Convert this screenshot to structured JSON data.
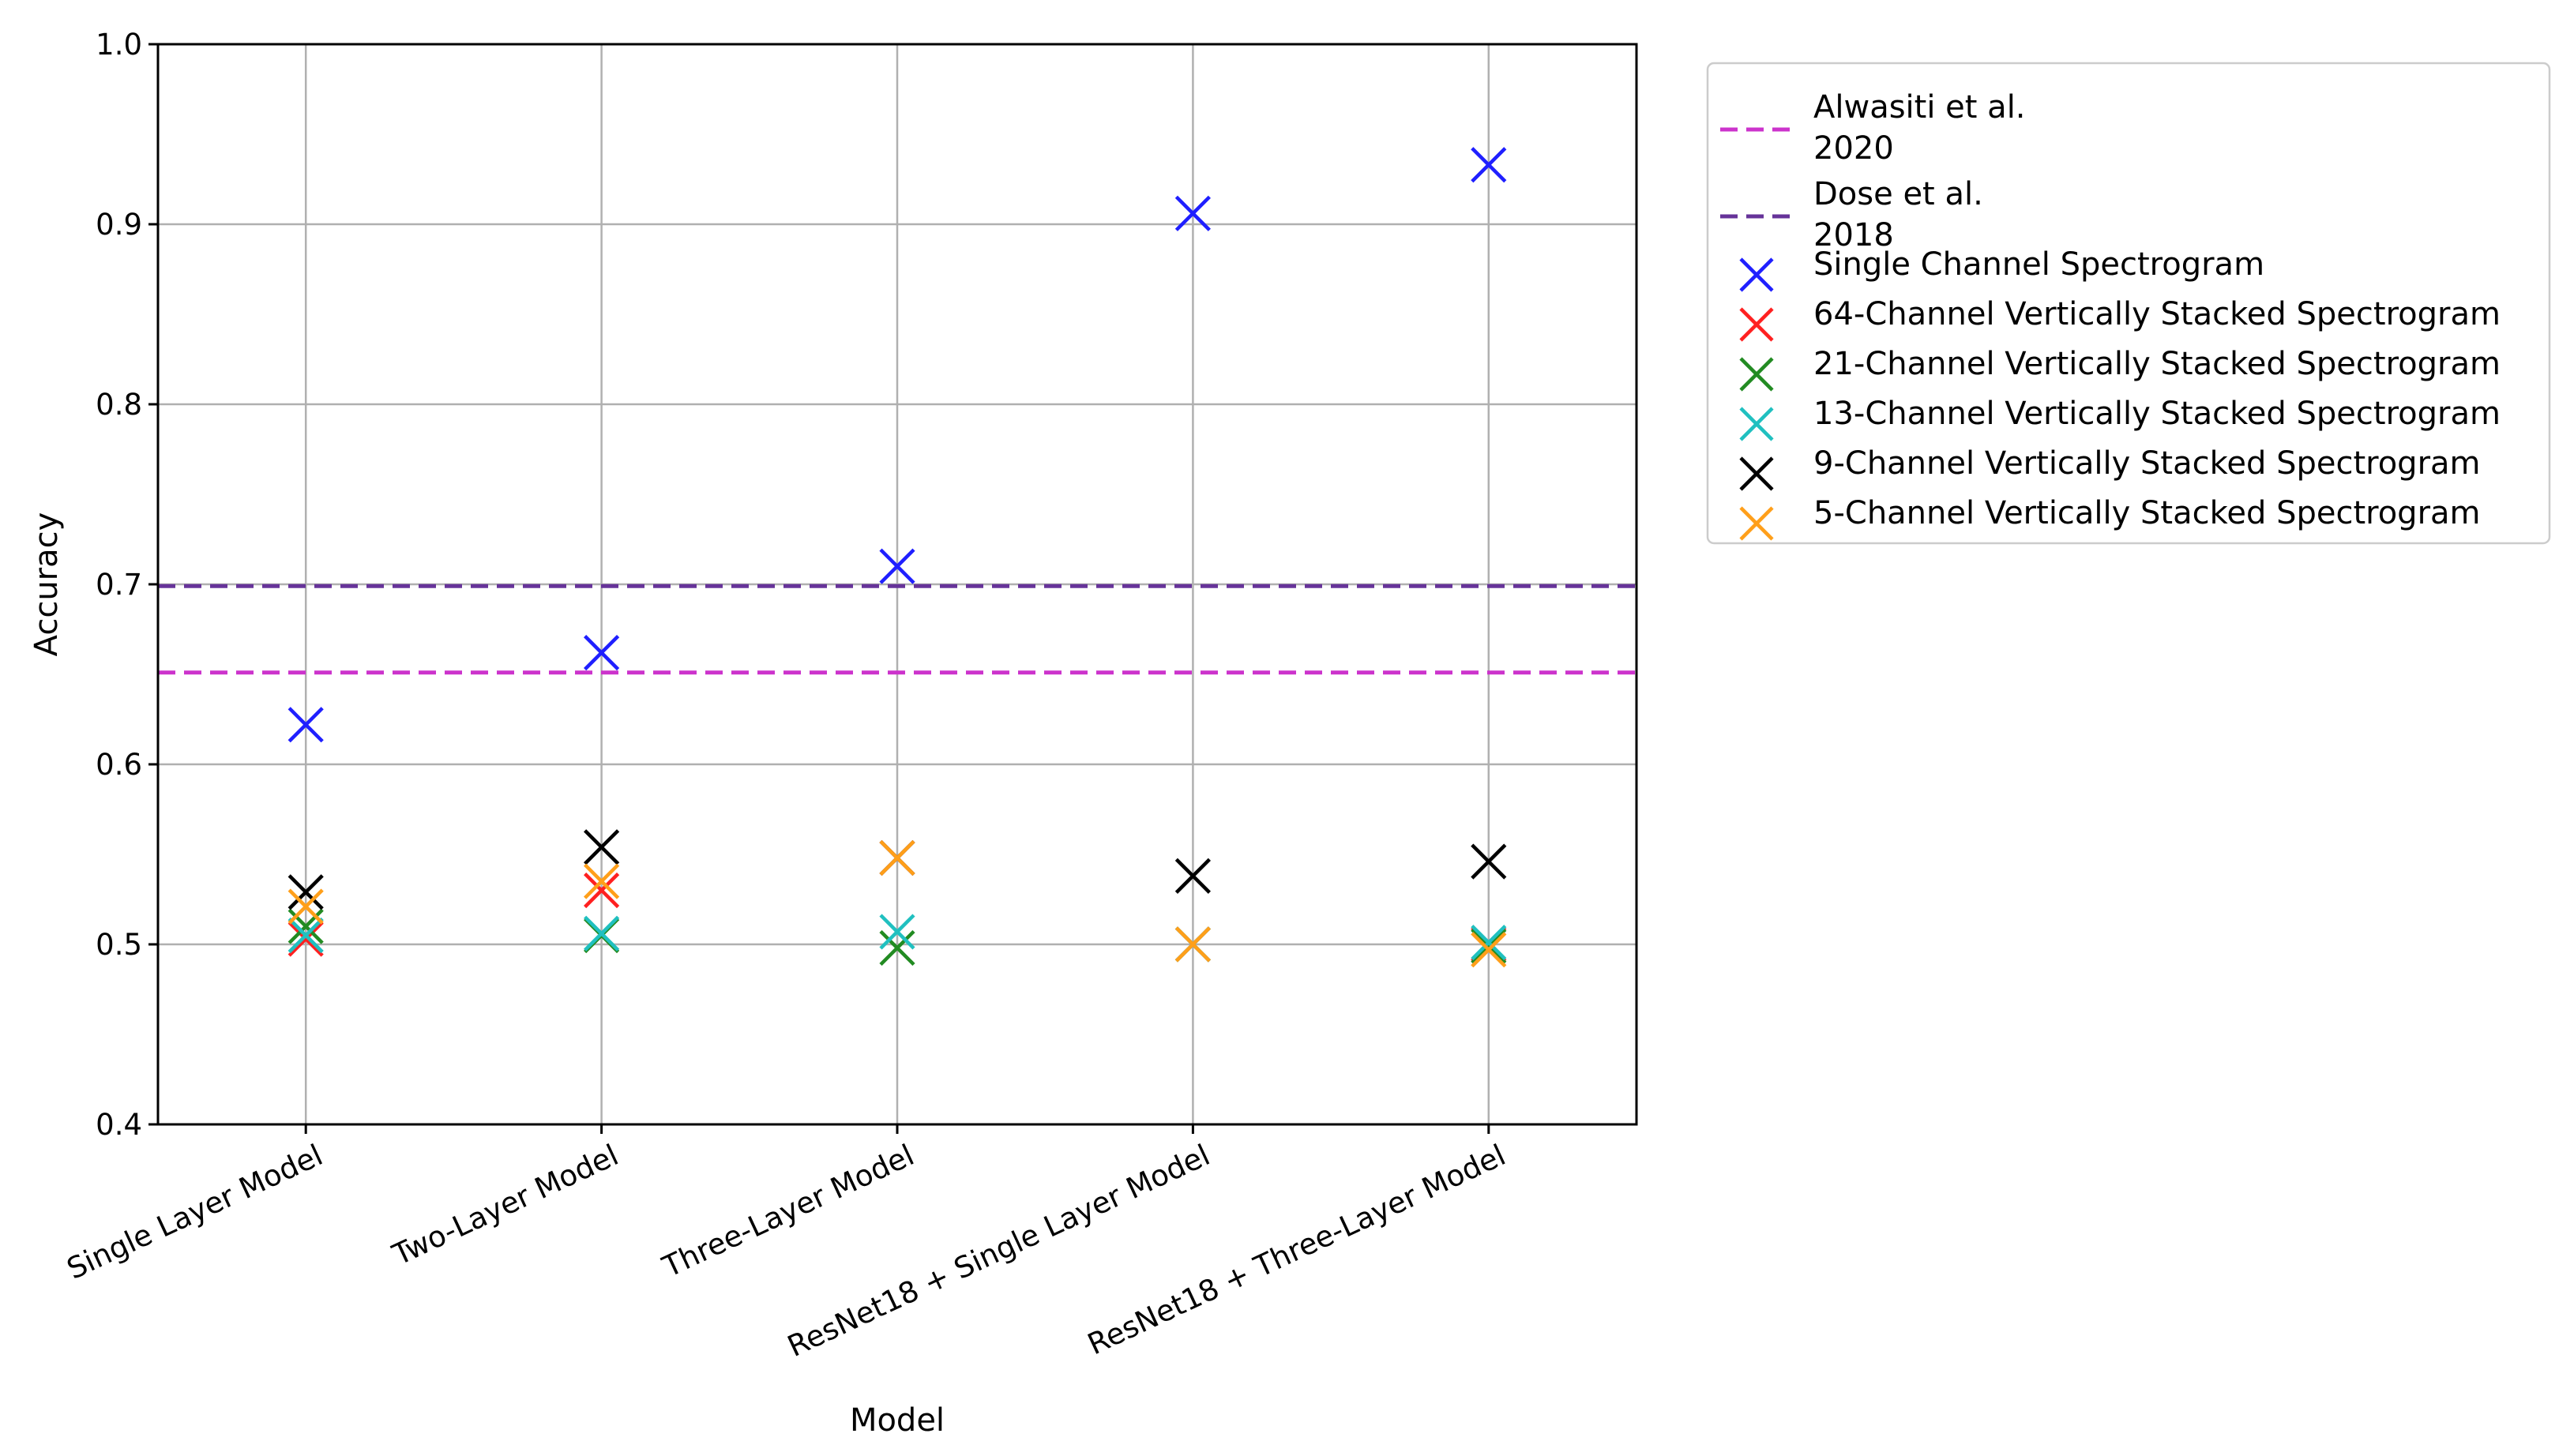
{
  "chart_data": {
    "type": "scatter",
    "xlabel": "Model",
    "ylabel": "Accuracy",
    "ylim": [
      0.4,
      1.0
    ],
    "yticks": [
      "0.4",
      "0.5",
      "0.6",
      "0.7",
      "0.8",
      "0.9",
      "1.0"
    ],
    "grid": true,
    "legend_position": "outside-right",
    "categories": [
      "Single Layer Model",
      "Two-Layer Model",
      "Three-Layer Model",
      "ResNet18 + Single Layer Model",
      "ResNet18 + Three-Layer Model"
    ],
    "reference_lines": [
      {
        "name_lines": [
          "Alwasiti et al.",
          "2020"
        ],
        "y": 0.651,
        "color": "#cc33cc",
        "style": "dashed"
      },
      {
        "name_lines": [
          "Dose et al.",
          "2018"
        ],
        "y": 0.699,
        "color": "#663399",
        "style": "dashed"
      }
    ],
    "series": [
      {
        "name": "Single Channel Spectrogram",
        "color": "#1f1fff",
        "values": [
          0.622,
          0.662,
          0.71,
          0.906,
          0.933
        ]
      },
      {
        "name": "64-Channel Vertically Stacked Spectrogram",
        "color": "#ff2020",
        "values": [
          0.503,
          0.53,
          0.548,
          0.5,
          0.5
        ]
      },
      {
        "name": "21-Channel Vertically Stacked Spectrogram",
        "color": "#228b22",
        "values": [
          0.51,
          0.505,
          0.498,
          0.5,
          0.499
        ]
      },
      {
        "name": "13-Channel Vertically Stacked Spectrogram",
        "color": "#20c0c0",
        "values": [
          0.505,
          0.506,
          0.507,
          0.5,
          0.501
        ]
      },
      {
        "name": "9-Channel Vertically Stacked Spectrogram",
        "color": "#000000",
        "values": [
          0.529,
          0.554,
          0.548,
          0.538,
          0.546
        ]
      },
      {
        "name": "5-Channel Vertically Stacked Spectrogram",
        "color": "#ff9f1a",
        "values": [
          0.521,
          0.535,
          0.548,
          0.5,
          0.497
        ]
      }
    ]
  }
}
